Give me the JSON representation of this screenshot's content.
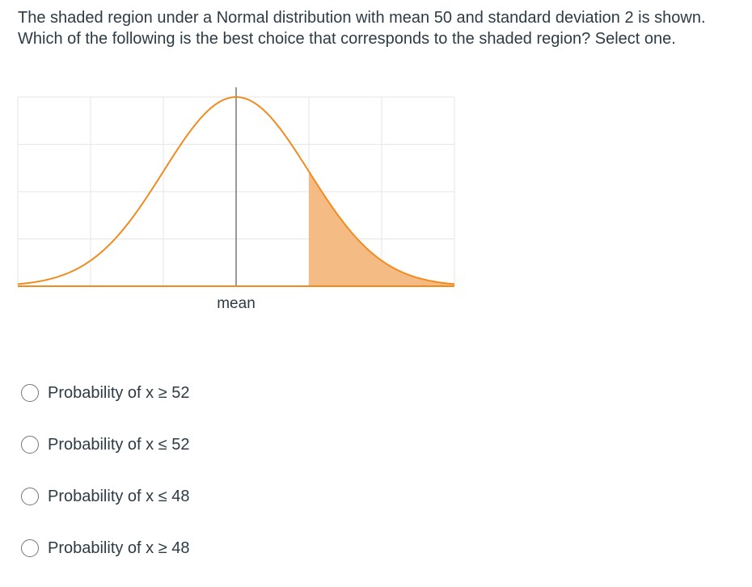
{
  "question": {
    "text": "The shaded region under a Normal distribution with mean 50 and standard deviation 2 is shown. Which of the following is the best choice that corresponds to the shaded region? Select one."
  },
  "chart_data": {
    "type": "area",
    "distribution": "normal",
    "mean": 50,
    "sd": 2,
    "x_range": [
      44,
      56
    ],
    "shaded_from": 52,
    "shaded_to": 56,
    "mean_line_label": "mean",
    "grid": true,
    "colors": {
      "curve": "#f28b1f",
      "shade": "#f5bb84",
      "grid": "#e6e6e6",
      "axis": "#333333"
    }
  },
  "options": [
    {
      "label": "Probability of x ≥ 52"
    },
    {
      "label": "Probability of x ≤ 52"
    },
    {
      "label": "Probability of x ≤ 48"
    },
    {
      "label": "Probability of x ≥ 48"
    }
  ]
}
